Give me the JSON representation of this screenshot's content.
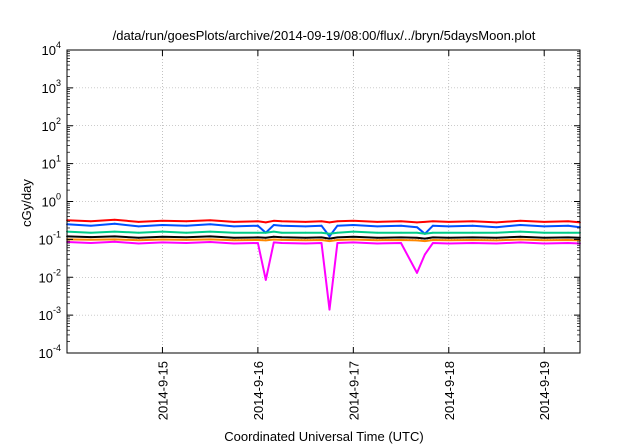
{
  "chart_data": {
    "type": "line",
    "title": "/data/run/goesPlots/archive/2014-09-19/08:00/flux/../bryn/5daysMoon.plot",
    "xlabel": "Coordinated Universal Time (UTC)",
    "ylabel": "cGy/day",
    "yscale": "log",
    "xlim": [
      "2014-09-14 00:00",
      "2014-09-19 09:00"
    ],
    "ylim": [
      0.0001,
      10000
    ],
    "y_ticks": [
      {
        "base": "10",
        "exp": "-4",
        "value": 0.0001
      },
      {
        "base": "10",
        "exp": "-3",
        "value": 0.001
      },
      {
        "base": "10",
        "exp": "-2",
        "value": 0.01
      },
      {
        "base": "10",
        "exp": "-1",
        "value": 0.1
      },
      {
        "base": "10",
        "exp": "0",
        "value": 1
      },
      {
        "base": "10",
        "exp": "1",
        "value": 10
      },
      {
        "base": "10",
        "exp": "2",
        "value": 100
      },
      {
        "base": "10",
        "exp": "3",
        "value": 1000
      },
      {
        "base": "10",
        "exp": "4",
        "value": 10000
      }
    ],
    "x_ticks": [
      {
        "label": "2014-9-15",
        "value": "2014-09-15 00:00"
      },
      {
        "label": "2014-9-16",
        "value": "2014-09-16 00:00"
      },
      {
        "label": "2014-9-17",
        "value": "2014-09-17 00:00"
      },
      {
        "label": "2014-9-18",
        "value": "2014-09-18 00:00"
      },
      {
        "label": "2014-9-19",
        "value": "2014-09-19 00:00"
      }
    ],
    "grid": true,
    "legend": "none",
    "x": [
      "2014-09-14 00:00",
      "2014-09-14 06:00",
      "2014-09-14 12:00",
      "2014-09-14 18:00",
      "2014-09-15 00:00",
      "2014-09-15 06:00",
      "2014-09-15 12:00",
      "2014-09-15 18:00",
      "2014-09-16 00:00",
      "2014-09-16 02:00",
      "2014-09-16 04:00",
      "2014-09-16 06:00",
      "2014-09-16 12:00",
      "2014-09-16 16:00",
      "2014-09-16 18:00",
      "2014-09-16 20:00",
      "2014-09-17 00:00",
      "2014-09-17 06:00",
      "2014-09-17 12:00",
      "2014-09-17 16:00",
      "2014-09-17 18:00",
      "2014-09-17 20:00",
      "2014-09-18 00:00",
      "2014-09-18 06:00",
      "2014-09-18 12:00",
      "2014-09-18 18:00",
      "2014-09-19 00:00",
      "2014-09-19 06:00",
      "2014-09-19 09:00"
    ],
    "series": [
      {
        "color": "#ff0000",
        "values": [
          0.32,
          0.3,
          0.33,
          0.29,
          0.31,
          0.3,
          0.32,
          0.29,
          0.3,
          0.28,
          0.31,
          0.3,
          0.29,
          0.3,
          0.28,
          0.3,
          0.31,
          0.29,
          0.3,
          0.28,
          0.29,
          0.3,
          0.29,
          0.3,
          0.28,
          0.31,
          0.29,
          0.3,
          0.28
        ]
      },
      {
        "color": "#0050ff",
        "values": [
          0.25,
          0.23,
          0.26,
          0.22,
          0.24,
          0.23,
          0.25,
          0.22,
          0.23,
          0.15,
          0.24,
          0.23,
          0.22,
          0.23,
          0.12,
          0.23,
          0.24,
          0.22,
          0.23,
          0.21,
          0.14,
          0.23,
          0.22,
          0.23,
          0.21,
          0.24,
          0.22,
          0.23,
          0.21
        ]
      },
      {
        "color": "#00cc88",
        "values": [
          0.16,
          0.15,
          0.16,
          0.15,
          0.16,
          0.15,
          0.16,
          0.15,
          0.15,
          0.15,
          0.16,
          0.15,
          0.15,
          0.15,
          0.14,
          0.15,
          0.16,
          0.15,
          0.15,
          0.15,
          0.14,
          0.15,
          0.15,
          0.15,
          0.15,
          0.16,
          0.15,
          0.15,
          0.15
        ]
      },
      {
        "color": "#000000",
        "values": [
          0.12,
          0.115,
          0.12,
          0.11,
          0.118,
          0.114,
          0.12,
          0.11,
          0.113,
          0.11,
          0.118,
          0.114,
          0.11,
          0.113,
          0.105,
          0.113,
          0.118,
          0.11,
          0.113,
          0.11,
          0.105,
          0.113,
          0.11,
          0.113,
          0.11,
          0.118,
          0.11,
          0.113,
          0.11
        ]
      },
      {
        "color": "#ff8800",
        "values": [
          0.1,
          0.098,
          0.1,
          0.095,
          0.099,
          0.097,
          0.1,
          0.095,
          0.096,
          0.094,
          0.099,
          0.097,
          0.095,
          0.096,
          0.09,
          0.096,
          0.099,
          0.095,
          0.096,
          0.094,
          0.09,
          0.096,
          0.095,
          0.096,
          0.094,
          0.099,
          0.095,
          0.096,
          0.094
        ]
      },
      {
        "color": "#ff00ff",
        "values": [
          0.085,
          0.08,
          0.087,
          0.078,
          0.083,
          0.08,
          0.085,
          0.078,
          0.08,
          0.0085,
          0.083,
          0.08,
          0.078,
          0.08,
          0.0014,
          0.08,
          0.083,
          0.078,
          0.08,
          0.013,
          0.04,
          0.08,
          0.078,
          0.08,
          0.078,
          0.083,
          0.078,
          0.08,
          0.078
        ]
      }
    ]
  }
}
